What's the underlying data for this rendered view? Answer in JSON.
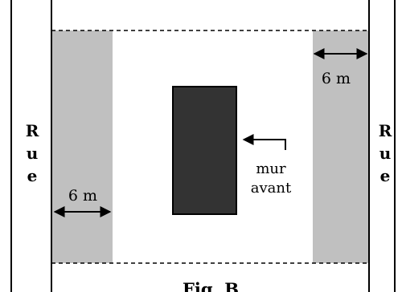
{
  "street_left": [
    "R",
    "u",
    "e"
  ],
  "street_right": [
    "R",
    "u",
    "e"
  ],
  "setback_left": "6 m",
  "setback_right": "6 m",
  "wall_label_line1": "mur",
  "wall_label_line2": "avant",
  "caption": "Fig. B",
  "colors": {
    "setback_fill": "#c0c0c0",
    "building_fill": "#333333",
    "line": "#000000"
  }
}
